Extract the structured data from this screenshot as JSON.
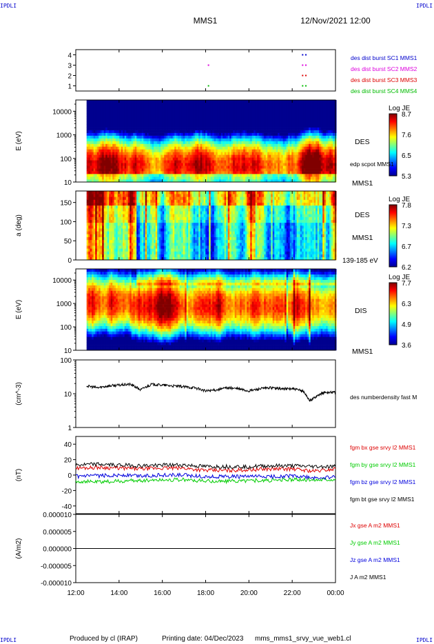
{
  "header": {
    "spacecraft": "MMS1",
    "datetime": "12/Nov/2021 12:00",
    "corner_label": "IPDLI"
  },
  "footer": {
    "produced_by": "Produced by cl (IRAP)",
    "printing_date": "Printing date: 04/Dec/2023",
    "script_name": "mms_mms1_srvy_vue_web1.cl"
  },
  "colorbar_colors": [
    "#00008f",
    "#0000ff",
    "#0080ff",
    "#00ffff",
    "#80ff80",
    "#ffff00",
    "#ff8000",
    "#ff0000",
    "#800000"
  ],
  "chart_data": [
    {
      "type": "scatter",
      "ylim": [
        0.5,
        4.5
      ],
      "yticks": [
        "1",
        "2",
        "3",
        "4"
      ],
      "series": [
        {
          "name": "des dist burst SC1 MMS1",
          "color": "#0000cc",
          "level": 4,
          "times": [
            22.45,
            22.6
          ]
        },
        {
          "name": "des dist burst SC2 MMS2",
          "color": "#dd00dd",
          "level": 3,
          "times": [
            18.1,
            22.45,
            22.6
          ]
        },
        {
          "name": "des dist burst SC3 MMS3",
          "color": "#dd0000",
          "level": 2,
          "times": [
            22.45,
            22.6
          ]
        },
        {
          "name": "des dist burst SC4 MMS4",
          "color": "#00bb00",
          "level": 1,
          "times": [
            18.1,
            22.45,
            22.6
          ]
        }
      ]
    },
    {
      "type": "heatmap",
      "ylabel": "E (eV)",
      "ylim": [
        10,
        30000
      ],
      "scale": "log",
      "yticks": [
        "10",
        "100",
        "1000",
        "10000"
      ],
      "species": "DES",
      "spacecraft": "MMS1",
      "overlay_label": "edp scpot MMS1",
      "colorbar": {
        "title": "Log JE",
        "min": 5.3,
        "max": 8.7,
        "ticks": [
          "8.7",
          "7.6",
          "6.5",
          "5.3"
        ]
      },
      "peak_energy_ev": 50
    },
    {
      "type": "heatmap",
      "ylabel": "a (deg)",
      "ylim": [
        0,
        180
      ],
      "yticks": [
        "0",
        "50",
        "100",
        "150"
      ],
      "species": "DES",
      "spacecraft": "MMS1",
      "energy_range": "139-185 eV",
      "colorbar": {
        "title": "Log JE",
        "min": 6.2,
        "max": 7.8,
        "ticks": [
          "7.8",
          "7.3",
          "6.7",
          "6.2"
        ]
      }
    },
    {
      "type": "heatmap",
      "ylabel": "E (eV)",
      "ylim": [
        10,
        30000
      ],
      "scale": "log",
      "yticks": [
        "10",
        "100",
        "1000",
        "10000"
      ],
      "species": "DIS",
      "spacecraft": "MMS1",
      "colorbar": {
        "title": "Log JE",
        "min": 3.6,
        "max": 7.7,
        "ticks": [
          "7.7",
          "6.3",
          "4.9",
          "3.6"
        ]
      },
      "peak_energy_ev": 800
    },
    {
      "type": "line",
      "ylabel": "(cm^-3)",
      "ylim": [
        1,
        100
      ],
      "scale": "log",
      "yticks": [
        "1",
        "10",
        "100"
      ],
      "series": [
        {
          "name": "des numberdensity fast M",
          "color": "#000000",
          "x": [
            12.5,
            13.0,
            13.5,
            14.0,
            14.5,
            15.0,
            15.5,
            16.0,
            16.5,
            17.0,
            17.5,
            18.0,
            18.5,
            19.0,
            19.5,
            20.0,
            20.5,
            21.0,
            21.5,
            22.0,
            22.5,
            22.8,
            23.2,
            23.5,
            24.0
          ],
          "y": [
            17,
            15,
            17,
            18,
            19,
            13,
            19,
            18,
            17,
            16,
            15,
            12,
            13,
            15,
            14,
            12,
            14,
            15,
            14,
            14,
            12,
            6,
            9,
            11,
            11
          ]
        }
      ]
    },
    {
      "type": "line",
      "ylabel": "(nT)",
      "ylim": [
        -50,
        50
      ],
      "yticks": [
        "-40",
        "-20",
        "0",
        "20",
        "40"
      ],
      "series": [
        {
          "name": "fgm bx gse srvy l2 MMS1",
          "color": "#dd0000",
          "x": [
            12,
            13,
            14,
            15,
            16,
            17,
            18,
            19,
            20,
            21,
            22,
            23,
            24
          ],
          "y": [
            9,
            10,
            9,
            8,
            9,
            9,
            6,
            6,
            7,
            8,
            8,
            5,
            8
          ]
        },
        {
          "name": "fgm by gse srvy l2 MMS1",
          "color": "#00cc00",
          "x": [
            12,
            13,
            14,
            15,
            16,
            17,
            18,
            19,
            20,
            21,
            22,
            23,
            24
          ],
          "y": [
            -8,
            -9,
            -8,
            -7,
            -6,
            -6,
            -8,
            -8,
            -7,
            -7,
            -6,
            -6,
            -5
          ]
        },
        {
          "name": "fgm bz gse srvy l2 MMS1",
          "color": "#0000dd",
          "x": [
            12,
            13,
            14,
            15,
            16,
            17,
            18,
            19,
            20,
            21,
            22,
            23,
            24
          ],
          "y": [
            -2,
            -1,
            0,
            -1,
            0,
            0,
            -2,
            -2,
            -2,
            -2,
            -1,
            -4,
            -3
          ]
        },
        {
          "name": "fgm bt gse srvy l2 MMS1",
          "color": "#000000",
          "x": [
            12,
            13,
            14,
            15,
            16,
            17,
            18,
            19,
            20,
            21,
            22,
            23,
            24
          ],
          "y": [
            13,
            14,
            13,
            12,
            13,
            13,
            11,
            11,
            11,
            12,
            12,
            11,
            11
          ]
        }
      ]
    },
    {
      "type": "line",
      "ylabel": "(A/m2)",
      "ylim": [
        -1e-05,
        1e-05
      ],
      "yticks": [
        "-0.000010",
        "-0.000005",
        "0.000000",
        "0.000005",
        "0.000010"
      ],
      "series": [
        {
          "name": "Jx gse A m2 MMS1",
          "color": "#dd0000",
          "x": [
            12,
            24
          ],
          "y": [
            0,
            0
          ]
        },
        {
          "name": "Jy gse A m2 MMS1",
          "color": "#00cc00",
          "x": [
            12,
            24
          ],
          "y": [
            0,
            0
          ]
        },
        {
          "name": "Jz gse A m2 MMS1",
          "color": "#0000dd",
          "x": [
            12,
            24
          ],
          "y": [
            0,
            0
          ]
        },
        {
          "name": "J A m2 MMS1",
          "color": "#000000",
          "x": [
            12,
            24
          ],
          "y": [
            0,
            0
          ]
        }
      ]
    }
  ],
  "time_axis": {
    "range_hours": [
      12,
      24
    ],
    "ticks": [
      {
        "label": "12:00",
        "hour": 12
      },
      {
        "label": "14:00",
        "hour": 14
      },
      {
        "label": "16:00",
        "hour": 16
      },
      {
        "label": "18:00",
        "hour": 18
      },
      {
        "label": "20:00",
        "hour": 20
      },
      {
        "label": "22:00",
        "hour": 22
      },
      {
        "label": "00:00",
        "hour": 24
      }
    ]
  }
}
